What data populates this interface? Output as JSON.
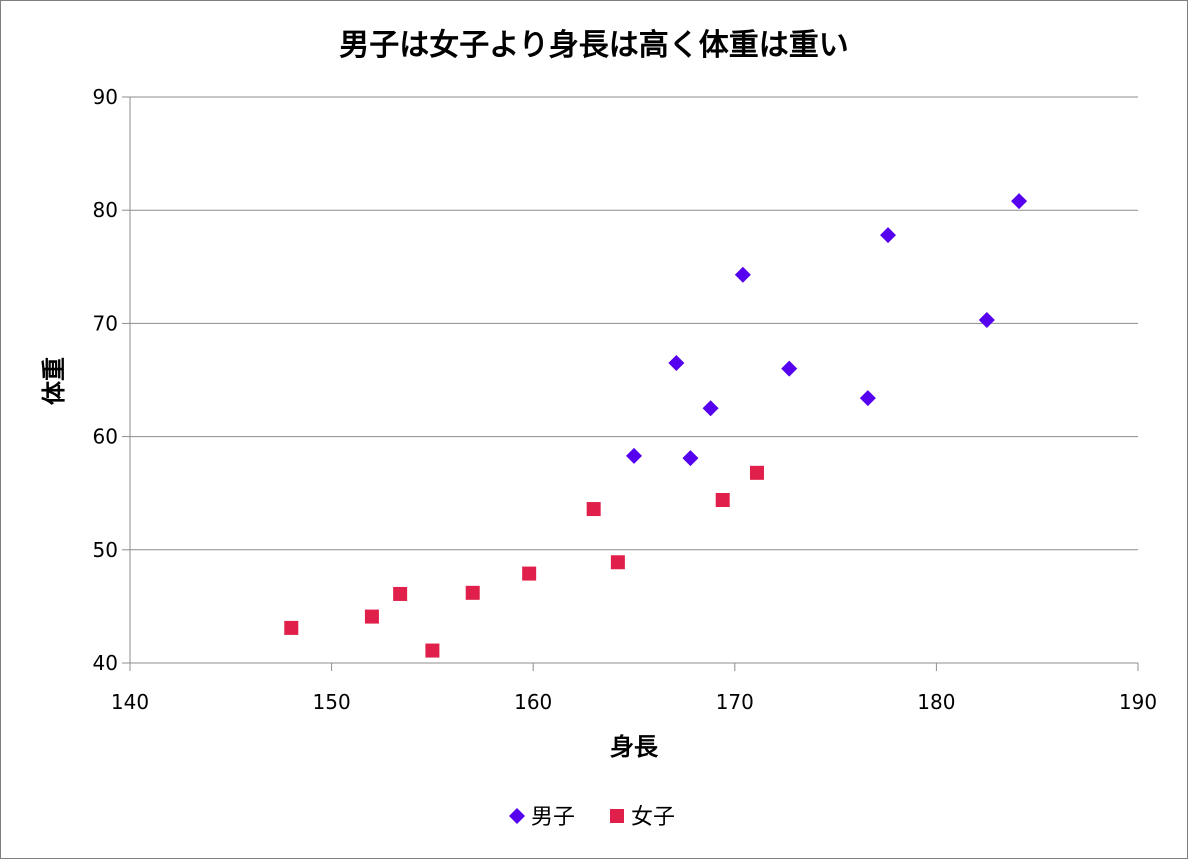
{
  "chart_data": {
    "type": "scatter",
    "title": "男子は女子より身長は高く体重は重い",
    "xlabel": "身長",
    "ylabel": "体重",
    "xlim": [
      140,
      190
    ],
    "ylim": [
      40,
      90
    ],
    "x_ticks": [
      140,
      150,
      160,
      170,
      180,
      190
    ],
    "y_ticks": [
      40,
      50,
      60,
      70,
      80,
      90
    ],
    "grid": "horizontal",
    "legend": "bottom",
    "series": [
      {
        "name": "男子",
        "marker": "diamond",
        "color": "#5500ee",
        "points": [
          {
            "x": 165.0,
            "y": 58.3
          },
          {
            "x": 167.1,
            "y": 66.5
          },
          {
            "x": 167.8,
            "y": 58.1
          },
          {
            "x": 168.8,
            "y": 62.5
          },
          {
            "x": 170.4,
            "y": 74.3
          },
          {
            "x": 172.7,
            "y": 66.0
          },
          {
            "x": 176.6,
            "y": 63.4
          },
          {
            "x": 177.6,
            "y": 77.8
          },
          {
            "x": 182.5,
            "y": 70.3
          },
          {
            "x": 184.1,
            "y": 80.8
          }
        ]
      },
      {
        "name": "女子",
        "marker": "square",
        "color": "#e0204a",
        "points": [
          {
            "x": 148.0,
            "y": 43.1
          },
          {
            "x": 152.0,
            "y": 44.1
          },
          {
            "x": 153.4,
            "y": 46.1
          },
          {
            "x": 155.0,
            "y": 41.1
          },
          {
            "x": 157.0,
            "y": 46.2
          },
          {
            "x": 159.8,
            "y": 47.9
          },
          {
            "x": 163.0,
            "y": 53.6
          },
          {
            "x": 164.2,
            "y": 48.9
          },
          {
            "x": 169.4,
            "y": 54.4
          },
          {
            "x": 171.1,
            "y": 56.8
          }
        ]
      }
    ]
  }
}
